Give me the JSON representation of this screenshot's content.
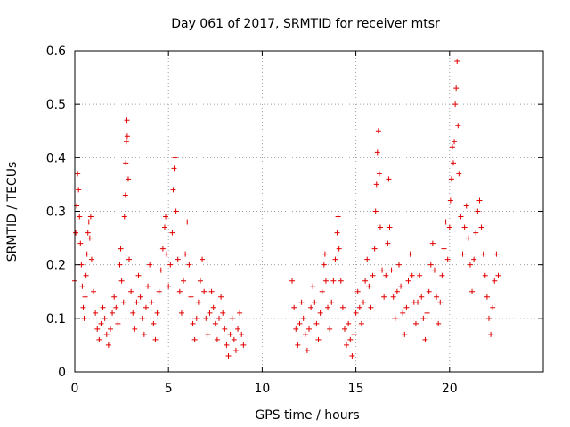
{
  "chart_data": {
    "type": "scatter",
    "title": "Day 061 of 2017, SRMTID for receiver mtsr",
    "xlabel": "GPS time / hours",
    "ylabel": "SRMTID / TECUs",
    "xlim": [
      0,
      25
    ],
    "ylim": [
      0,
      0.6
    ],
    "x_ticks": [
      0,
      5,
      10,
      15,
      20
    ],
    "x_tick_labels": [
      "0",
      "5",
      "10",
      "15",
      "20"
    ],
    "y_ticks": [
      0,
      0.1,
      0.2,
      0.3,
      0.4,
      0.5,
      0.6
    ],
    "y_tick_labels": [
      "0",
      "0.1",
      "0.2",
      "0.3",
      "0.4",
      "0.5",
      "0.6"
    ],
    "grid": true,
    "marker": "+",
    "color": "#e00000",
    "series": [
      {
        "name": "SRMTID",
        "points": [
          [
            0.0,
            0.17
          ],
          [
            0.05,
            0.26
          ],
          [
            0.1,
            0.31
          ],
          [
            0.15,
            0.37
          ],
          [
            0.2,
            0.34
          ],
          [
            0.25,
            0.29
          ],
          [
            0.3,
            0.24
          ],
          [
            0.35,
            0.2
          ],
          [
            0.4,
            0.16
          ],
          [
            0.45,
            0.12
          ],
          [
            0.5,
            0.1
          ],
          [
            0.55,
            0.14
          ],
          [
            0.6,
            0.18
          ],
          [
            0.65,
            0.22
          ],
          [
            0.7,
            0.26
          ],
          [
            0.75,
            0.28
          ],
          [
            0.8,
            0.25
          ],
          [
            0.85,
            0.29
          ],
          [
            0.9,
            0.21
          ],
          [
            1.0,
            0.15
          ],
          [
            1.1,
            0.11
          ],
          [
            1.2,
            0.08
          ],
          [
            1.3,
            0.06
          ],
          [
            1.4,
            0.09
          ],
          [
            1.5,
            0.12
          ],
          [
            1.6,
            0.1
          ],
          [
            1.7,
            0.07
          ],
          [
            1.8,
            0.05
          ],
          [
            1.9,
            0.08
          ],
          [
            2.0,
            0.11
          ],
          [
            2.1,
            0.14
          ],
          [
            2.2,
            0.12
          ],
          [
            2.3,
            0.09
          ],
          [
            2.4,
            0.2
          ],
          [
            2.45,
            0.23
          ],
          [
            2.5,
            0.17
          ],
          [
            2.6,
            0.13
          ],
          [
            2.65,
            0.29
          ],
          [
            2.7,
            0.33
          ],
          [
            2.72,
            0.39
          ],
          [
            2.75,
            0.43
          ],
          [
            2.78,
            0.47
          ],
          [
            2.8,
            0.44
          ],
          [
            2.85,
            0.36
          ],
          [
            2.9,
            0.21
          ],
          [
            3.0,
            0.15
          ],
          [
            3.1,
            0.11
          ],
          [
            3.2,
            0.08
          ],
          [
            3.3,
            0.13
          ],
          [
            3.4,
            0.18
          ],
          [
            3.5,
            0.14
          ],
          [
            3.6,
            0.1
          ],
          [
            3.7,
            0.07
          ],
          [
            3.8,
            0.12
          ],
          [
            3.9,
            0.16
          ],
          [
            4.0,
            0.2
          ],
          [
            4.1,
            0.13
          ],
          [
            4.2,
            0.09
          ],
          [
            4.3,
            0.06
          ],
          [
            4.4,
            0.11
          ],
          [
            4.5,
            0.15
          ],
          [
            4.6,
            0.19
          ],
          [
            4.7,
            0.23
          ],
          [
            4.8,
            0.27
          ],
          [
            4.85,
            0.29
          ],
          [
            4.9,
            0.22
          ],
          [
            5.0,
            0.16
          ],
          [
            5.1,
            0.2
          ],
          [
            5.2,
            0.26
          ],
          [
            5.25,
            0.34
          ],
          [
            5.3,
            0.38
          ],
          [
            5.35,
            0.4
          ],
          [
            5.4,
            0.3
          ],
          [
            5.5,
            0.21
          ],
          [
            5.6,
            0.15
          ],
          [
            5.7,
            0.11
          ],
          [
            5.8,
            0.17
          ],
          [
            5.9,
            0.22
          ],
          [
            6.0,
            0.28
          ],
          [
            6.1,
            0.2
          ],
          [
            6.2,
            0.14
          ],
          [
            6.3,
            0.09
          ],
          [
            6.4,
            0.06
          ],
          [
            6.5,
            0.1
          ],
          [
            6.6,
            0.13
          ],
          [
            6.7,
            0.17
          ],
          [
            6.8,
            0.21
          ],
          [
            6.9,
            0.15
          ],
          [
            7.0,
            0.1
          ],
          [
            7.1,
            0.07
          ],
          [
            7.2,
            0.11
          ],
          [
            7.3,
            0.15
          ],
          [
            7.4,
            0.12
          ],
          [
            7.5,
            0.09
          ],
          [
            7.6,
            0.06
          ],
          [
            7.7,
            0.1
          ],
          [
            7.8,
            0.14
          ],
          [
            7.9,
            0.11
          ],
          [
            8.0,
            0.08
          ],
          [
            8.1,
            0.05
          ],
          [
            8.2,
            0.03
          ],
          [
            8.3,
            0.07
          ],
          [
            8.4,
            0.1
          ],
          [
            8.5,
            0.06
          ],
          [
            8.6,
            0.04
          ],
          [
            8.7,
            0.08
          ],
          [
            8.8,
            0.11
          ],
          [
            8.9,
            0.07
          ],
          [
            9.0,
            0.05
          ],
          [
            11.6,
            0.17
          ],
          [
            11.7,
            0.12
          ],
          [
            11.8,
            0.08
          ],
          [
            11.9,
            0.05
          ],
          [
            12.0,
            0.09
          ],
          [
            12.1,
            0.13
          ],
          [
            12.2,
            0.1
          ],
          [
            12.3,
            0.07
          ],
          [
            12.4,
            0.04
          ],
          [
            12.5,
            0.08
          ],
          [
            12.6,
            0.12
          ],
          [
            12.7,
            0.16
          ],
          [
            12.8,
            0.13
          ],
          [
            12.9,
            0.09
          ],
          [
            13.0,
            0.06
          ],
          [
            13.1,
            0.11
          ],
          [
            13.2,
            0.15
          ],
          [
            13.3,
            0.2
          ],
          [
            13.35,
            0.22
          ],
          [
            13.4,
            0.17
          ],
          [
            13.5,
            0.12
          ],
          [
            13.6,
            0.08
          ],
          [
            13.7,
            0.13
          ],
          [
            13.8,
            0.17
          ],
          [
            13.9,
            0.21
          ],
          [
            14.0,
            0.26
          ],
          [
            14.05,
            0.29
          ],
          [
            14.1,
            0.23
          ],
          [
            14.2,
            0.17
          ],
          [
            14.3,
            0.12
          ],
          [
            14.4,
            0.08
          ],
          [
            14.5,
            0.05
          ],
          [
            14.6,
            0.09
          ],
          [
            14.7,
            0.06
          ],
          [
            14.8,
            0.03
          ],
          [
            14.9,
            0.07
          ],
          [
            15.0,
            0.11
          ],
          [
            15.1,
            0.15
          ],
          [
            15.2,
            0.12
          ],
          [
            15.3,
            0.09
          ],
          [
            15.4,
            0.13
          ],
          [
            15.5,
            0.17
          ],
          [
            15.6,
            0.21
          ],
          [
            15.7,
            0.16
          ],
          [
            15.8,
            0.12
          ],
          [
            15.9,
            0.18
          ],
          [
            16.0,
            0.23
          ],
          [
            16.05,
            0.3
          ],
          [
            16.1,
            0.35
          ],
          [
            16.15,
            0.41
          ],
          [
            16.2,
            0.45
          ],
          [
            16.25,
            0.37
          ],
          [
            16.3,
            0.27
          ],
          [
            16.4,
            0.19
          ],
          [
            16.5,
            0.14
          ],
          [
            16.6,
            0.18
          ],
          [
            16.7,
            0.24
          ],
          [
            16.75,
            0.36
          ],
          [
            16.8,
            0.27
          ],
          [
            16.9,
            0.19
          ],
          [
            17.0,
            0.14
          ],
          [
            17.1,
            0.1
          ],
          [
            17.2,
            0.15
          ],
          [
            17.3,
            0.2
          ],
          [
            17.4,
            0.16
          ],
          [
            17.5,
            0.11
          ],
          [
            17.6,
            0.07
          ],
          [
            17.7,
            0.12
          ],
          [
            17.8,
            0.17
          ],
          [
            17.9,
            0.22
          ],
          [
            18.0,
            0.18
          ],
          [
            18.1,
            0.13
          ],
          [
            18.2,
            0.09
          ],
          [
            18.3,
            0.13
          ],
          [
            18.4,
            0.18
          ],
          [
            18.5,
            0.14
          ],
          [
            18.6,
            0.1
          ],
          [
            18.7,
            0.06
          ],
          [
            18.8,
            0.11
          ],
          [
            18.9,
            0.15
          ],
          [
            19.0,
            0.2
          ],
          [
            19.1,
            0.24
          ],
          [
            19.2,
            0.19
          ],
          [
            19.3,
            0.14
          ],
          [
            19.4,
            0.09
          ],
          [
            19.5,
            0.13
          ],
          [
            19.6,
            0.18
          ],
          [
            19.7,
            0.23
          ],
          [
            19.8,
            0.28
          ],
          [
            19.9,
            0.21
          ],
          [
            20.0,
            0.27
          ],
          [
            20.05,
            0.32
          ],
          [
            20.1,
            0.36
          ],
          [
            20.15,
            0.42
          ],
          [
            20.2,
            0.39
          ],
          [
            20.25,
            0.43
          ],
          [
            20.3,
            0.5
          ],
          [
            20.35,
            0.53
          ],
          [
            20.4,
            0.58
          ],
          [
            20.45,
            0.46
          ],
          [
            20.5,
            0.37
          ],
          [
            20.6,
            0.29
          ],
          [
            20.7,
            0.22
          ],
          [
            20.8,
            0.27
          ],
          [
            20.9,
            0.31
          ],
          [
            21.0,
            0.25
          ],
          [
            21.1,
            0.2
          ],
          [
            21.2,
            0.15
          ],
          [
            21.3,
            0.21
          ],
          [
            21.4,
            0.26
          ],
          [
            21.5,
            0.3
          ],
          [
            21.6,
            0.32
          ],
          [
            21.7,
            0.27
          ],
          [
            21.8,
            0.22
          ],
          [
            21.9,
            0.18
          ],
          [
            22.0,
            0.14
          ],
          [
            22.1,
            0.1
          ],
          [
            22.2,
            0.07
          ],
          [
            22.3,
            0.12
          ],
          [
            22.4,
            0.17
          ],
          [
            22.5,
            0.22
          ],
          [
            22.6,
            0.18
          ]
        ]
      }
    ]
  }
}
